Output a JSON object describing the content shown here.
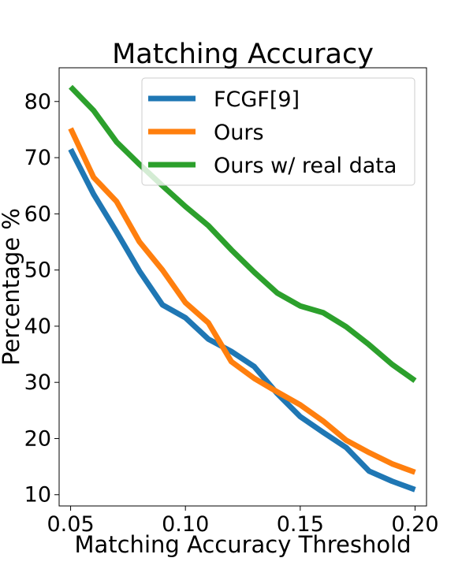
{
  "chart_data": {
    "type": "line",
    "title": "Matching Accuracy",
    "xlabel": "Matching Accuracy Threshold",
    "ylabel": "Percentage %",
    "xlim": [
      0.045,
      0.205
    ],
    "ylim": [
      8,
      86
    ],
    "x_ticks": [
      0.05,
      0.1,
      0.15,
      0.2
    ],
    "x_tick_labels": [
      "0.05",
      "0.10",
      "0.15",
      "0.20"
    ],
    "y_ticks": [
      10,
      20,
      30,
      40,
      50,
      60,
      70,
      80
    ],
    "y_tick_labels": [
      "10",
      "20",
      "30",
      "40",
      "50",
      "60",
      "70",
      "80"
    ],
    "grid": false,
    "legend_position": "top-right",
    "x": [
      0.05,
      0.06,
      0.07,
      0.08,
      0.09,
      0.1,
      0.11,
      0.12,
      0.13,
      0.14,
      0.15,
      0.16,
      0.17,
      0.18,
      0.19,
      0.2
    ],
    "series": [
      {
        "name": "FCGF[9]",
        "color": "#1f77b4",
        "values": [
          71.5,
          63.5,
          56.8,
          49.8,
          43.8,
          41.5,
          37.7,
          35.5,
          32.8,
          28.0,
          23.9,
          21.1,
          18.4,
          14.2,
          12.4,
          10.9
        ]
      },
      {
        "name": "Ours",
        "color": "#ff7f0e",
        "values": [
          75.2,
          66.5,
          62.2,
          55.0,
          50.0,
          44.2,
          40.6,
          33.7,
          30.7,
          28.3,
          26.0,
          23.1,
          19.7,
          17.5,
          15.5,
          14.0
        ]
      },
      {
        "name": "Ours w/ real data",
        "color": "#2ca02c",
        "values": [
          82.6,
          78.4,
          72.8,
          68.8,
          65.0,
          61.3,
          57.9,
          53.6,
          49.6,
          45.9,
          43.6,
          42.4,
          39.9,
          36.7,
          33.2,
          30.3
        ]
      }
    ]
  }
}
